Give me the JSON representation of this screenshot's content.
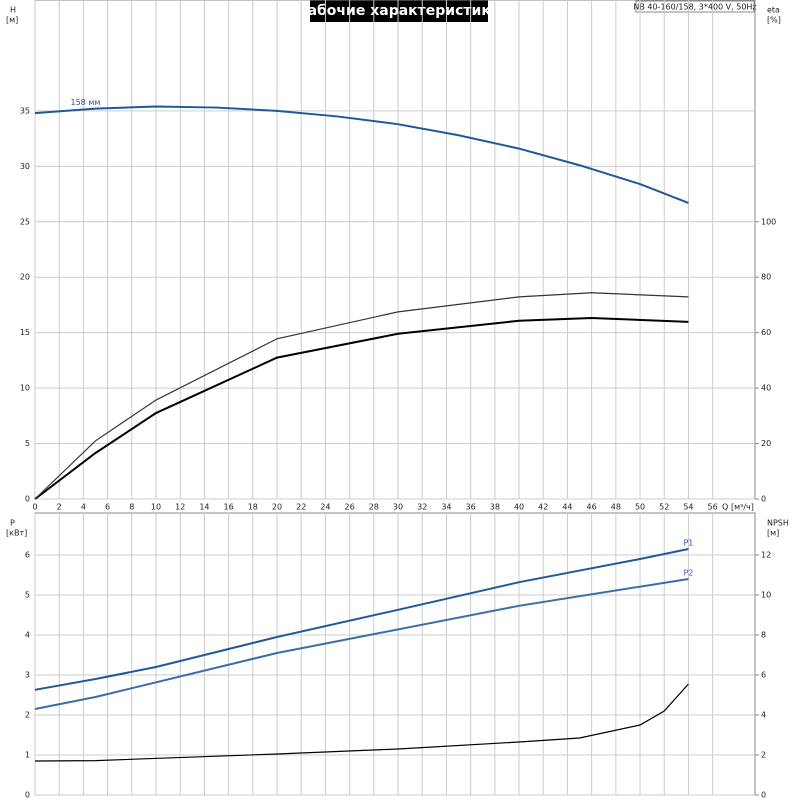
{
  "chart_data": [
    {
      "type": "line",
      "title": "Рабочие характеристики",
      "subtitle": "NB 40-160/158, 3*400 V, 50Hz",
      "xlabel": "Q",
      "xunit": "[м³/ч]",
      "ylabel": "H",
      "yunit": "[м]",
      "y2label": "eta",
      "y2unit": "[%]",
      "xlim": [
        0,
        59.5
      ],
      "xticks": [
        0,
        2,
        4,
        6,
        8,
        10,
        12,
        14,
        16,
        18,
        20,
        22,
        24,
        26,
        28,
        30,
        32,
        34,
        36,
        38,
        40,
        42,
        44,
        46,
        48,
        50,
        52,
        54,
        56
      ],
      "ylim": [
        0,
        45
      ],
      "yticks": [
        0,
        5,
        10,
        15,
        20,
        25,
        30,
        35
      ],
      "y2lim": [
        0,
        180
      ],
      "y2ticks": [
        0,
        20,
        40,
        60,
        80,
        100
      ],
      "grid": true,
      "series": [
        {
          "name": "158 мм",
          "color": "#1f5a96",
          "x": [
            0,
            5,
            10,
            15,
            20,
            25,
            30,
            35,
            40,
            45,
            50,
            54
          ],
          "values": [
            34.8,
            35.2,
            35.4,
            35.3,
            35.0,
            34.5,
            33.8,
            32.8,
            31.6,
            30.1,
            28.4,
            26.7
          ]
        },
        {
          "color": "#000000",
          "axis": "y2",
          "x": [
            0,
            5,
            10,
            20,
            30,
            40,
            46,
            54
          ],
          "values": [
            0,
            16.6,
            31,
            51,
            59.6,
            64.3,
            65.3,
            63.9
          ]
        },
        {
          "color": "#333333",
          "axis": "y2",
          "x": [
            0,
            5,
            10,
            20,
            30,
            40,
            46,
            54
          ],
          "values": [
            0,
            21,
            35.7,
            57.8,
            67.5,
            72.9,
            74.4,
            72.9
          ]
        }
      ]
    },
    {
      "type": "line",
      "ylabel": "P",
      "yunit": "[кВт]",
      "y2label": "NPSH",
      "y2unit": "[м]",
      "xlim": [
        0,
        59.5
      ],
      "ylim": [
        0,
        7.05
      ],
      "yticks": [
        0,
        1,
        2,
        3,
        4,
        5,
        6
      ],
      "y2lim": [
        0,
        14.1
      ],
      "y2ticks": [
        0,
        2,
        4,
        6,
        8,
        10,
        12
      ],
      "grid": true,
      "series": [
        {
          "name": "P1",
          "color": "#1f5a96",
          "x": [
            0,
            5,
            10,
            20,
            30,
            40,
            50,
            54
          ],
          "values": [
            2.63,
            2.9,
            3.2,
            3.95,
            4.63,
            5.32,
            5.9,
            6.15
          ]
        },
        {
          "name": "P2",
          "color": "#3a6ea5",
          "x": [
            0,
            5,
            20,
            40,
            54
          ],
          "values": [
            2.15,
            2.45,
            3.55,
            4.73,
            5.4
          ]
        },
        {
          "color": "#000000",
          "axis": "y2",
          "x": [
            0,
            5,
            20,
            30,
            40,
            45,
            50,
            52,
            54
          ],
          "values": [
            1.7,
            1.72,
            2.05,
            2.3,
            2.65,
            2.85,
            3.5,
            4.2,
            5.55
          ]
        }
      ]
    }
  ]
}
